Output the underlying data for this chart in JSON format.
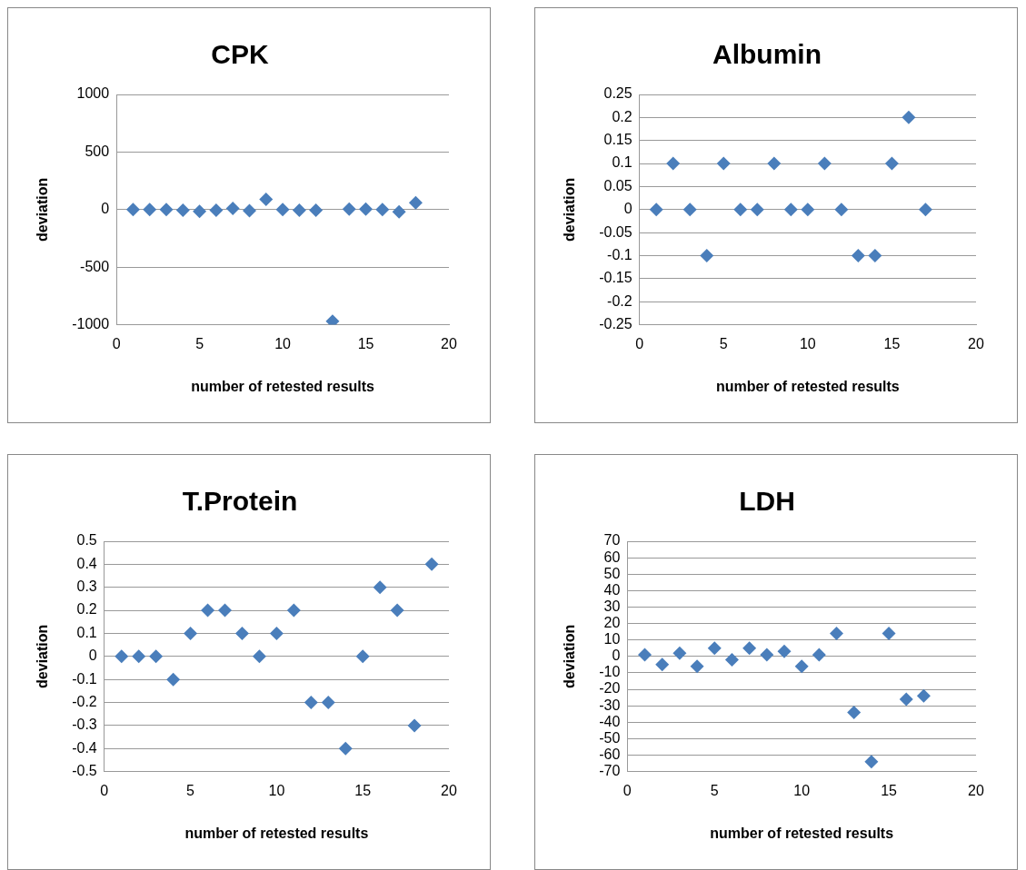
{
  "chart_data": [
    {
      "type": "scatter",
      "title": "CPK",
      "xlabel": "number of retested results",
      "ylabel": "deviation",
      "x": [
        1,
        2,
        3,
        4,
        5,
        6,
        7,
        8,
        9,
        10,
        11,
        12,
        13,
        14,
        15,
        16,
        17,
        18
      ],
      "series": [
        {
          "color": "#4a7ebb",
          "values": [
            0,
            0,
            0,
            -5,
            -15,
            -5,
            10,
            -10,
            90,
            0,
            -5,
            -5,
            -970,
            5,
            5,
            0,
            -20,
            60
          ]
        }
      ],
      "xlim": [
        0,
        20
      ],
      "xticks": [
        0,
        5,
        10,
        15,
        20
      ],
      "ylim": [
        -1000,
        1000
      ],
      "yticks": [
        -1000,
        -500,
        0,
        500,
        1000
      ],
      "grid": "y",
      "legend": false,
      "marker": "diamond"
    },
    {
      "type": "scatter",
      "title": "Albumin",
      "xlabel": "number of retested results",
      "ylabel": "deviation",
      "x": [
        1,
        2,
        3,
        4,
        5,
        6,
        7,
        8,
        9,
        10,
        11,
        12,
        13,
        14,
        15,
        16,
        17
      ],
      "series": [
        {
          "color": "#4a7ebb",
          "values": [
            0,
            0.1,
            0,
            -0.1,
            0.1,
            0,
            0,
            0.1,
            0,
            0,
            0.1,
            0,
            -0.1,
            -0.1,
            0.1,
            0.2,
            0
          ]
        }
      ],
      "xlim": [
        0,
        20
      ],
      "xticks": [
        0,
        5,
        10,
        15,
        20
      ],
      "ylim": [
        -0.25,
        0.25
      ],
      "yticks": [
        -0.25,
        -0.2,
        -0.15,
        -0.1,
        -0.05,
        0,
        0.05,
        0.1,
        0.15,
        0.2,
        0.25
      ],
      "grid": "y",
      "legend": false,
      "marker": "diamond"
    },
    {
      "type": "scatter",
      "title": "T.Protein",
      "xlabel": "number of retested results",
      "ylabel": "deviation",
      "x": [
        1,
        2,
        3,
        4,
        5,
        6,
        7,
        8,
        9,
        10,
        11,
        12,
        13,
        14,
        15,
        16,
        17,
        18,
        19
      ],
      "series": [
        {
          "color": "#4a7ebb",
          "values": [
            0,
            0,
            0,
            -0.1,
            0.1,
            0.2,
            0.2,
            0.1,
            0,
            0.1,
            0.2,
            -0.2,
            -0.2,
            -0.4,
            0,
            0.3,
            0.2,
            -0.3,
            0.4
          ]
        }
      ],
      "xlim": [
        0,
        20
      ],
      "xticks": [
        0,
        5,
        10,
        15,
        20
      ],
      "ylim": [
        -0.5,
        0.5
      ],
      "yticks": [
        -0.5,
        -0.4,
        -0.3,
        -0.2,
        -0.1,
        0,
        0.1,
        0.2,
        0.3,
        0.4,
        0.5
      ],
      "grid": "y",
      "legend": false,
      "marker": "diamond"
    },
    {
      "type": "scatter",
      "title": "LDH",
      "xlabel": "number of retested results",
      "ylabel": "deviation",
      "x": [
        1,
        2,
        3,
        4,
        5,
        6,
        7,
        8,
        9,
        10,
        11,
        12,
        13,
        14,
        15,
        16,
        17
      ],
      "series": [
        {
          "color": "#4a7ebb",
          "values": [
            1,
            -5,
            2,
            -6,
            5,
            -2,
            5,
            1,
            3,
            -6,
            1,
            14,
            -34,
            -64,
            14,
            -26,
            -24
          ]
        }
      ],
      "xlim": [
        0,
        20
      ],
      "xticks": [
        0,
        5,
        10,
        15,
        20
      ],
      "ylim": [
        -70,
        70
      ],
      "yticks": [
        -70,
        -60,
        -50,
        -40,
        -30,
        -20,
        -10,
        0,
        10,
        20,
        30,
        40,
        50,
        60,
        70
      ],
      "grid": "y",
      "legend": false,
      "marker": "diamond"
    }
  ]
}
